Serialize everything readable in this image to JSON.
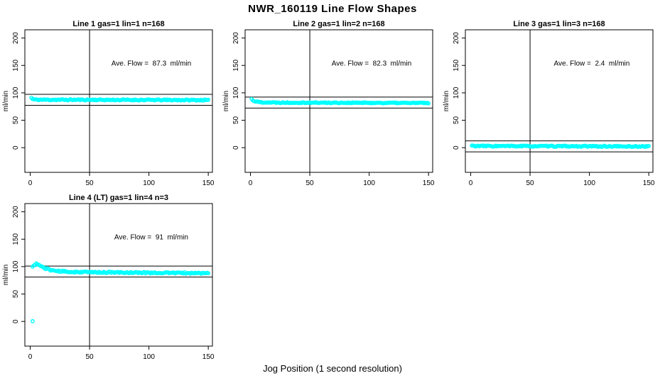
{
  "figure": {
    "title": "NWR_160119  Line Flow Shapes",
    "xlabel": "Jog Position (1 second resolution)",
    "point_color": "#00ffff",
    "axis_color": "#000000",
    "bg_color": "#ffffff"
  },
  "chart_data": [
    {
      "type": "scatter",
      "title": "Line 1 gas=1 lin=1 n=168",
      "annotation": "Ave. Flow =  87.3  ml/min",
      "ave_flow_ml_min": 87.3,
      "n": 168,
      "ylabel": "ml/min",
      "xticks": [
        0,
        50,
        100,
        150
      ],
      "yticks": [
        0,
        50,
        100,
        150,
        200
      ],
      "xlim": [
        -4.5,
        153.5
      ],
      "ylim": [
        -45,
        215
      ],
      "vline_x": 50,
      "hlines": [
        97.3,
        77.3
      ],
      "annotation_pos": [
        102,
        150
      ],
      "series": {
        "x_start": 1,
        "x_end": 150,
        "jitter": 1.0,
        "seed": 11,
        "anchors": [
          [
            1,
            91
          ],
          [
            2,
            88.5
          ],
          [
            5,
            87.5
          ],
          [
            150,
            86.8
          ]
        ],
        "extra_points": []
      }
    },
    {
      "type": "scatter",
      "title": "Line 2 gas=1 lin=2 n=168",
      "annotation": "Ave. Flow =  82.3  ml/min",
      "ave_flow_ml_min": 82.3,
      "n": 168,
      "ylabel": "ml/min",
      "xticks": [
        0,
        50,
        100,
        150
      ],
      "yticks": [
        0,
        50,
        100,
        150,
        200
      ],
      "xlim": [
        -4.5,
        153.5
      ],
      "ylim": [
        -45,
        215
      ],
      "vline_x": 50,
      "hlines": [
        92.3,
        72.3
      ],
      "annotation_pos": [
        102,
        150
      ],
      "series": {
        "x_start": 1,
        "x_end": 150,
        "jitter": 0.9,
        "seed": 22,
        "anchors": [
          [
            1,
            88.5
          ],
          [
            2,
            86.5
          ],
          [
            4,
            84.5
          ],
          [
            8,
            83
          ],
          [
            20,
            82.3
          ],
          [
            150,
            81.5
          ]
        ],
        "extra_points": []
      }
    },
    {
      "type": "scatter",
      "title": "Line 3 gas=1 lin=3 n=168",
      "annotation": "Ave. Flow =  2.4  ml/min",
      "ave_flow_ml_min": 2.4,
      "n": 168,
      "ylabel": "ml/min",
      "xticks": [
        0,
        50,
        100,
        150
      ],
      "yticks": [
        0,
        50,
        100,
        150,
        200
      ],
      "xlim": [
        -4.5,
        153.5
      ],
      "ylim": [
        -45,
        215
      ],
      "vline_x": 50,
      "hlines": [
        12.4,
        -7.6
      ],
      "annotation_pos": [
        102,
        150
      ],
      "series": {
        "x_start": 1,
        "x_end": 150,
        "jitter": 1.0,
        "seed": 33,
        "anchors": [
          [
            1,
            3.8
          ],
          [
            3,
            3.0
          ],
          [
            150,
            2.2
          ]
        ],
        "extra_points": []
      }
    },
    {
      "type": "scatter",
      "title": "Line 4 (LT) gas=1 lin=4 n=3",
      "annotation": "Ave. Flow =  91  ml/min",
      "ave_flow_ml_min": 91,
      "n": 3,
      "ylabel": "ml/min",
      "xticks": [
        0,
        50,
        100,
        150
      ],
      "yticks": [
        0,
        50,
        100,
        150,
        200
      ],
      "xlim": [
        -4.5,
        153.5
      ],
      "ylim": [
        -45,
        215
      ],
      "vline_x": 50,
      "hlines": [
        101,
        81
      ],
      "annotation_pos": [
        102,
        150
      ],
      "series": {
        "x_start": 2,
        "x_end": 150,
        "jitter": 1.3,
        "seed": 44,
        "anchors": [
          [
            2,
            99
          ],
          [
            3,
            103
          ],
          [
            5,
            105
          ],
          [
            7,
            103.5
          ],
          [
            9,
            101
          ],
          [
            12,
            97.5
          ],
          [
            16,
            94.5
          ],
          [
            22,
            92
          ],
          [
            32,
            90.5
          ],
          [
            60,
            89.5
          ],
          [
            150,
            88
          ]
        ],
        "extra_points": [
          [
            2,
            0.5
          ]
        ]
      }
    }
  ]
}
